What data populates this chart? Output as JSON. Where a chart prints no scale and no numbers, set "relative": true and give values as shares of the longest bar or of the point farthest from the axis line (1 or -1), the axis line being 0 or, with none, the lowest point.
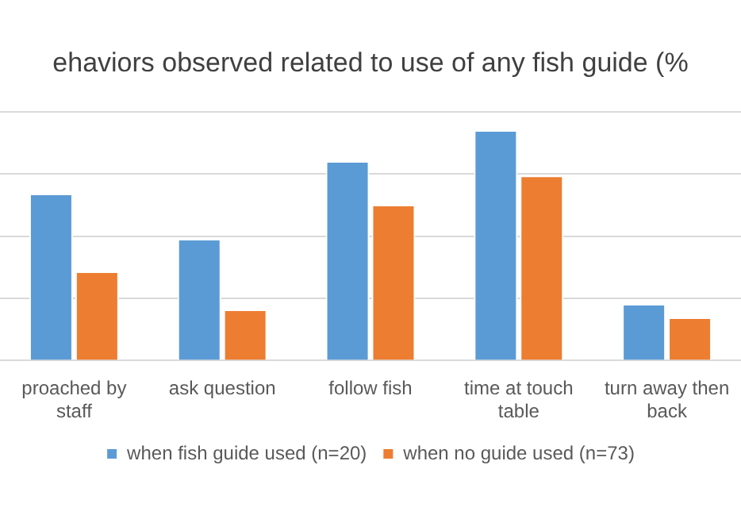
{
  "chart_data": {
    "type": "bar",
    "title": "ehaviors observed related to use of any fish guide (%",
    "categories": [
      "proached by staff",
      "ask question",
      "follow fish",
      "time at touch table",
      "turn away then back"
    ],
    "relative": true,
    "grid": true,
    "legend": "bottom",
    "series": [
      {
        "name": "when fish guide used (n=20)",
        "color": "#5b9bd5",
        "values": [
          0.725,
          0.528,
          0.866,
          1,
          0.246
        ]
      },
      {
        "name": "when no guide used (n=73)",
        "color": "#ed7d31",
        "values": [
          0.387,
          0.222,
          0.676,
          0.803,
          0.187
        ]
      }
    ]
  }
}
